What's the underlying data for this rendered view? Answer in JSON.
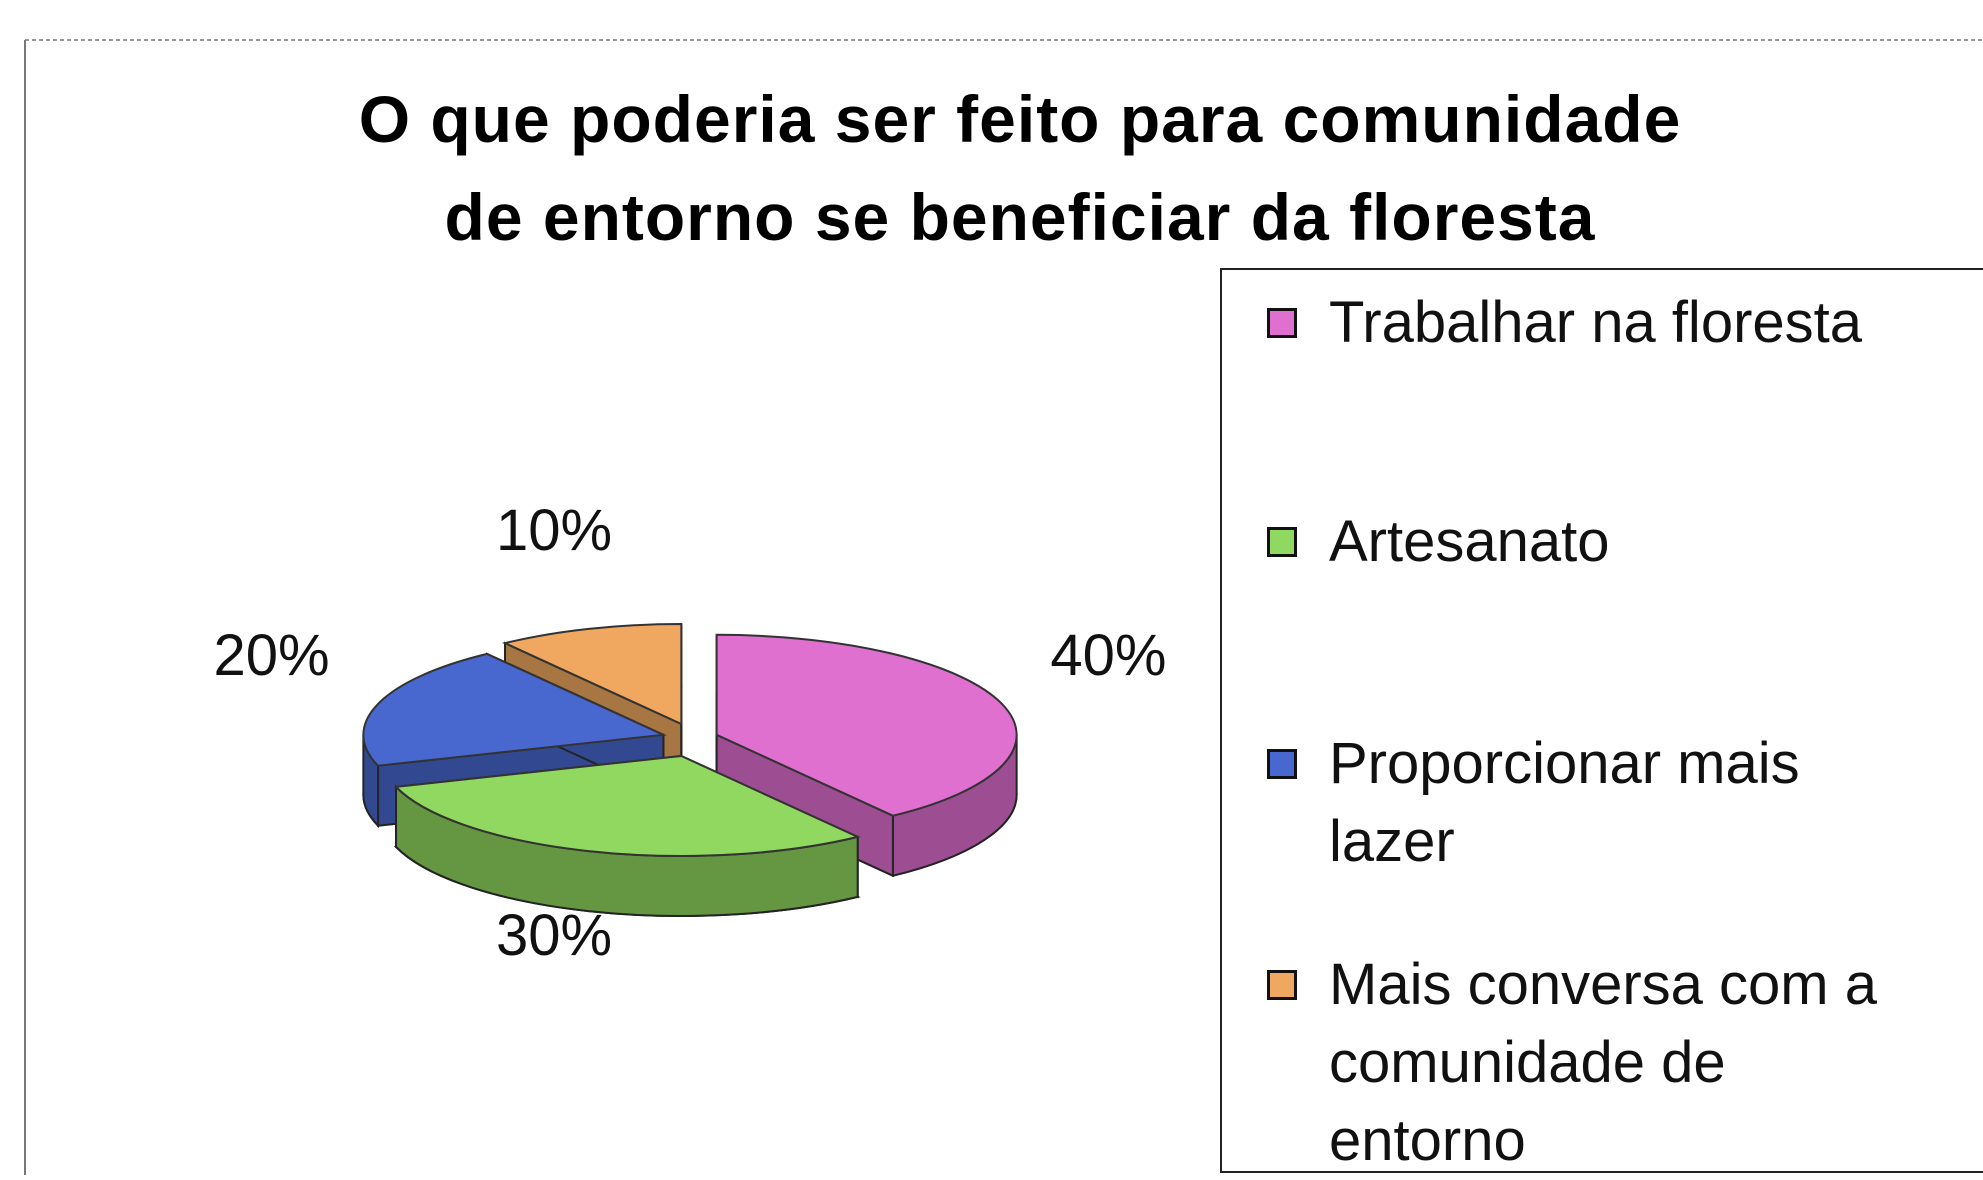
{
  "chart_data": {
    "type": "pie3d",
    "title": "O que poderia ser feito para comunidade\nde entorno se beneficiar da floresta",
    "categories": [
      "Trabalhar na floresta",
      "Artesanato",
      "Proporcionar mais\nlazer",
      "Mais conversa com a\ncomunidade de\nentorno"
    ],
    "values": [
      40,
      30,
      20,
      10
    ],
    "value_labels": [
      "40%",
      "30%",
      "20%",
      "10%"
    ],
    "colors": [
      "#e070d0",
      "#90d860",
      "#4868d0",
      "#f0a860"
    ],
    "legend": "right"
  }
}
